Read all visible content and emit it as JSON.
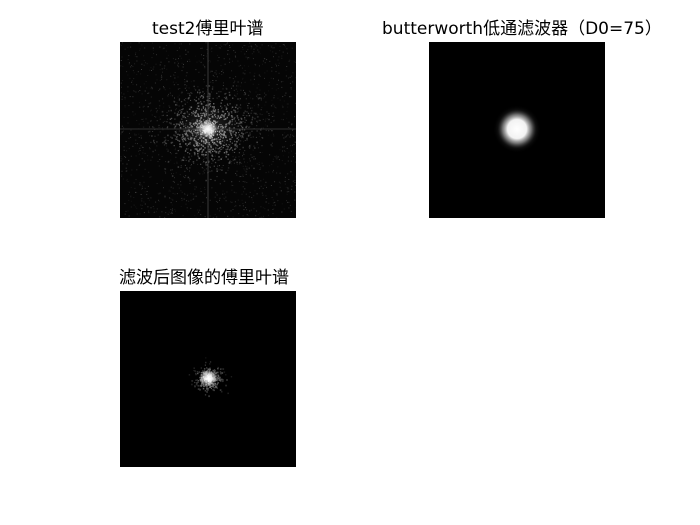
{
  "figure": {
    "panels": [
      {
        "title": "test2傅里叶谱",
        "image": "fourier-spectrum-star-cross"
      },
      {
        "title": "butterworth低通滤波器（D0=75）",
        "image": "butterworth-lowpass-glow"
      },
      {
        "title": "滤波后图像的傅里叶谱",
        "image": "filtered-fourier-spectrum"
      }
    ]
  },
  "colors": {
    "background": "#ffffff",
    "image_background": "#000000",
    "highlight": "#ffffff"
  }
}
